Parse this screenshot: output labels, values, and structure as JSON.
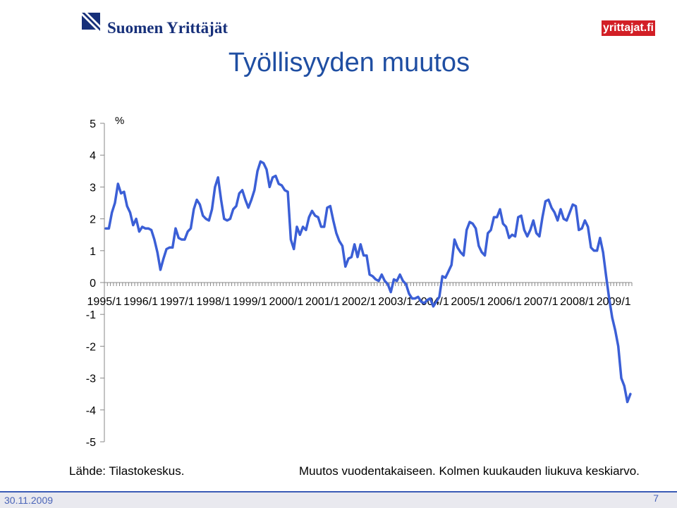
{
  "header": {
    "brand_left": "Suomen Yrittäjät",
    "brand_right": "yrittajat.fi"
  },
  "slide": {
    "title": "Työllisyyden muutos",
    "source": "Lähde: Tilastokeskus.",
    "note": "Muutos vuodentakaiseen. Kolmen kuukauden liukuva keskiarvo.",
    "date": "30.11.2009",
    "page": "7"
  },
  "colors": {
    "line": "#3b5fd6",
    "title": "#1f4ea2",
    "brand": "#17307a",
    "brand_right_bg": "#d21f26"
  },
  "chart_data": {
    "type": "line",
    "ylabel": "%",
    "ylim": [
      -5,
      5
    ],
    "yticks": [
      5,
      4,
      3,
      2,
      1,
      0,
      -1,
      -2,
      -3,
      -4,
      -5
    ],
    "x_tick_labels": [
      "1995/1",
      "1996/1",
      "1997/1",
      "1998/1",
      "1999/1",
      "2000/1",
      "2001/1",
      "2002/1",
      "2003/1",
      "2004/1",
      "2005/1",
      "2006/1",
      "2007/1",
      "2008/1",
      "2009/1"
    ],
    "x_start": "1995/1",
    "x_frequency": "monthly",
    "grid": false,
    "series": [
      {
        "values": [
          1.7,
          1.7,
          2.2,
          2.5,
          3.1,
          2.8,
          2.85,
          2.4,
          2.2,
          1.8,
          2.0,
          1.6,
          1.75,
          1.7,
          1.7,
          1.65,
          1.35,
          0.95,
          0.4,
          0.75,
          1.05,
          1.1,
          1.1,
          1.7,
          1.4,
          1.35,
          1.35,
          1.6,
          1.7,
          2.3,
          2.6,
          2.45,
          2.1,
          2.0,
          1.95,
          2.3,
          3.0,
          3.3,
          2.6,
          2.0,
          1.95,
          2.0,
          2.3,
          2.4,
          2.8,
          2.9,
          2.6,
          2.35,
          2.6,
          2.9,
          3.5,
          3.8,
          3.75,
          3.55,
          3.0,
          3.3,
          3.35,
          3.1,
          3.05,
          2.9,
          2.85,
          1.35,
          1.05,
          1.75,
          1.5,
          1.75,
          1.65,
          2.05,
          2.25,
          2.1,
          2.05,
          1.75,
          1.75,
          2.35,
          2.4,
          1.95,
          1.55,
          1.3,
          1.15,
          0.5,
          0.75,
          0.8,
          1.2,
          0.8,
          1.2,
          0.85,
          0.85,
          0.25,
          0.2,
          0.1,
          0.05,
          0.25,
          0.05,
          -0.05,
          -0.3,
          0.1,
          0.05,
          0.25,
          0.05,
          -0.05,
          -0.35,
          -0.5,
          -0.5,
          -0.45,
          -0.6,
          -0.65,
          -0.55,
          -0.5,
          -0.75,
          -0.6,
          -0.45,
          0.2,
          0.15,
          0.35,
          0.55,
          1.35,
          1.1,
          0.95,
          0.85,
          1.65,
          1.9,
          1.85,
          1.7,
          1.15,
          0.95,
          0.85,
          1.55,
          1.65,
          2.05,
          2.05,
          2.3,
          1.85,
          1.75,
          1.4,
          1.5,
          1.45,
          2.05,
          2.1,
          1.65,
          1.45,
          1.65,
          1.95,
          1.55,
          1.45,
          2.05,
          2.55,
          2.6,
          2.35,
          2.2,
          1.95,
          2.3,
          2.0,
          1.95,
          2.2,
          2.45,
          2.4,
          1.65,
          1.7,
          1.95,
          1.75,
          1.1,
          1.0,
          1.0,
          1.4,
          0.95,
          0.2,
          -0.5,
          -1.1,
          -1.5,
          -2.0,
          -3.0,
          -3.25,
          -3.75,
          -3.5
        ]
      }
    ]
  }
}
